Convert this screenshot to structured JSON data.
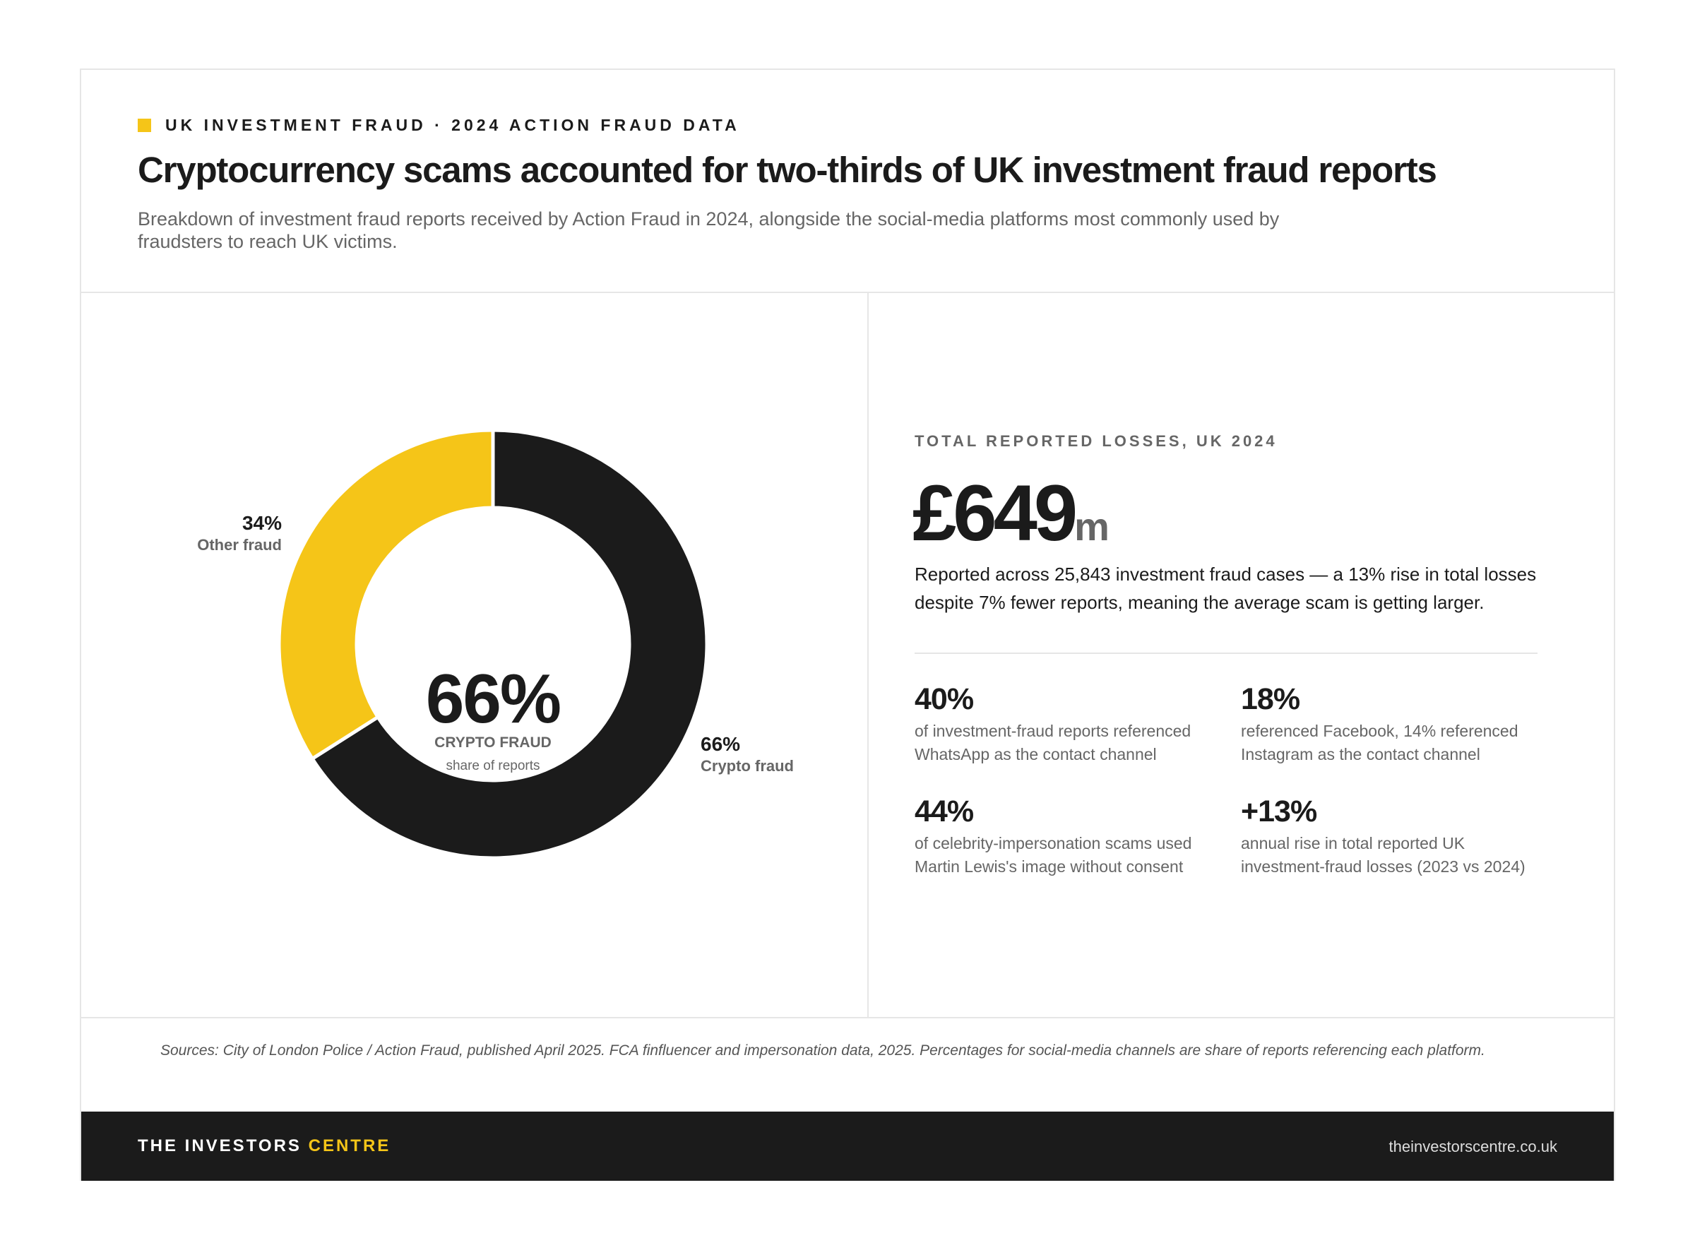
{
  "header": {
    "eyebrow": "UK INVESTMENT FRAUD · 2024 ACTION FRAUD DATA",
    "title": "Cryptocurrency scams accounted for two-thirds of UK investment fraud reports",
    "subtitle": "Breakdown of investment fraud reports received by Action Fraud in 2024, alongside the social-media platforms most commonly used by fraudsters to reach UK victims."
  },
  "chart_data": {
    "type": "pie",
    "donut": true,
    "categories": [
      "Crypto fraud",
      "Other fraud"
    ],
    "values": [
      66,
      34
    ],
    "colors": [
      "#1b1b1b",
      "#f5c518"
    ],
    "labels": [
      {
        "pct": "66%",
        "name": "Crypto fraud"
      },
      {
        "pct": "34%",
        "name": "Other fraud"
      }
    ],
    "center": {
      "value": "66%",
      "label": "CRYPTO FRAUD",
      "sublabel": "share of reports"
    }
  },
  "losses": {
    "label": "TOTAL REPORTED LOSSES, UK 2024",
    "value": "£649",
    "unit": "m",
    "description": "Reported across 25,843 investment fraud cases — a 13% rise in total losses despite 7% fewer reports, meaning the average scam is getting larger."
  },
  "stats": [
    {
      "value": "40%",
      "text": "of investment-fraud reports referenced WhatsApp as the contact channel"
    },
    {
      "value": "18%",
      "text": "referenced Facebook, 14% referenced Instagram as the contact channel"
    },
    {
      "value": "44%",
      "text": "of celebrity-impersonation scams used Martin Lewis's image without consent"
    },
    {
      "value": "+13%",
      "text": "annual rise in total reported UK investment-fraud losses (2023 vs 2024)"
    }
  ],
  "sources": "Sources: City of London Police / Action Fraud, published April 2025. FCA finfluencer and impersonation data, 2025. Percentages for social-media channels are share of reports referencing each platform.",
  "footer": {
    "brand_a": "THE INVESTORS",
    "brand_b": "CENTRE",
    "url": "theinvestorscentre.co.uk"
  },
  "colors": {
    "accent": "#f5c518",
    "dark": "#1b1b1b"
  }
}
